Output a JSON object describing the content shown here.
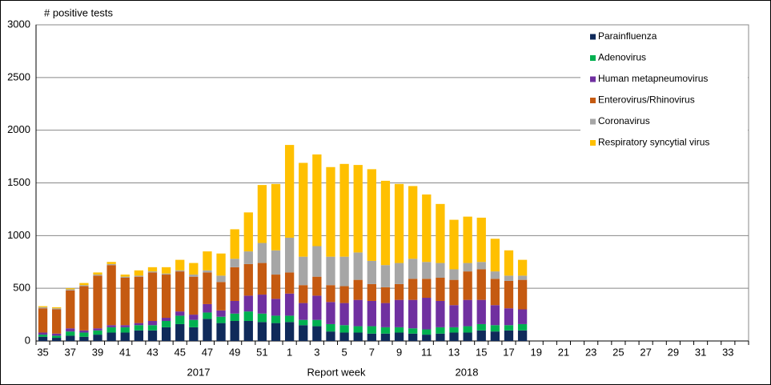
{
  "chart_data": {
    "type": "stacked_bar",
    "ylabel": "# positive tests",
    "xlabel": "Report  week",
    "annotations": [
      "2017",
      "2018"
    ],
    "categories": [
      35,
      null,
      37,
      null,
      39,
      null,
      41,
      null,
      43,
      null,
      45,
      null,
      47,
      null,
      49,
      null,
      51,
      null,
      1,
      null,
      3,
      null,
      5,
      null,
      7,
      null,
      9,
      null,
      11,
      null,
      13,
      null,
      15,
      null,
      17,
      null,
      19,
      null,
      21,
      null,
      23,
      null,
      25,
      null,
      27,
      null,
      29,
      null,
      31,
      null,
      33,
      null
    ],
    "ylim": [
      0,
      3000
    ],
    "yticks": [
      0,
      500,
      1000,
      1500,
      2000,
      2500,
      3000
    ],
    "grid": true,
    "legend": "top-right",
    "series": [
      {
        "name": "Parainfluenza",
        "color": "#0f2a5a",
        "values": [
          40,
          30,
          50,
          40,
          60,
          80,
          80,
          100,
          100,
          130,
          160,
          130,
          210,
          170,
          190,
          190,
          180,
          170,
          180,
          150,
          140,
          90,
          80,
          80,
          70,
          70,
          80,
          70,
          60,
          70,
          80,
          80,
          100,
          90,
          100,
          100,
          null,
          null,
          null,
          null,
          null,
          null,
          null,
          null,
          null,
          null,
          null,
          null,
          null,
          null,
          null,
          null
        ]
      },
      {
        "name": "Adenovirus",
        "color": "#00b050",
        "values": [
          20,
          20,
          40,
          40,
          40,
          50,
          50,
          50,
          50,
          60,
          80,
          70,
          60,
          60,
          70,
          90,
          80,
          70,
          60,
          50,
          60,
          70,
          70,
          60,
          70,
          60,
          50,
          50,
          50,
          60,
          50,
          60,
          60,
          60,
          50,
          60,
          null,
          null,
          null,
          null,
          null,
          null,
          null,
          null,
          null,
          null,
          null,
          null,
          null,
          null,
          null,
          null
        ]
      },
      {
        "name": "Human metapneumovirus",
        "color": "#7030a0",
        "values": [
          20,
          20,
          30,
          20,
          20,
          20,
          20,
          20,
          40,
          30,
          40,
          50,
          80,
          60,
          120,
          150,
          180,
          160,
          210,
          160,
          230,
          210,
          210,
          250,
          240,
          230,
          260,
          270,
          300,
          250,
          210,
          250,
          230,
          190,
          160,
          140,
          null,
          null,
          null,
          null,
          null,
          null,
          null,
          null,
          null,
          null,
          null,
          null,
          null,
          null,
          null,
          null
        ]
      },
      {
        "name": "Enterovirus/Rhinovirus",
        "color": "#c55a11",
        "values": [
          230,
          230,
          360,
          420,
          500,
          570,
          450,
          440,
          460,
          410,
          380,
          360,
          300,
          270,
          320,
          300,
          300,
          230,
          200,
          170,
          180,
          160,
          160,
          190,
          160,
          150,
          150,
          200,
          180,
          220,
          240,
          270,
          290,
          250,
          260,
          280,
          null,
          null,
          null,
          null,
          null,
          null,
          null,
          null,
          null,
          null,
          null,
          null,
          null,
          null,
          null,
          null
        ]
      },
      {
        "name": "Coronavirus",
        "color": "#a6a6a6",
        "values": [
          10,
          10,
          10,
          10,
          10,
          10,
          10,
          10,
          10,
          10,
          10,
          20,
          20,
          60,
          80,
          120,
          190,
          230,
          330,
          270,
          290,
          270,
          280,
          260,
          220,
          210,
          200,
          190,
          160,
          140,
          100,
          80,
          70,
          70,
          50,
          40,
          null,
          null,
          null,
          null,
          null,
          null,
          null,
          null,
          null,
          null,
          null,
          null,
          null,
          null,
          null,
          null
        ]
      },
      {
        "name": "Respiratory syncytial virus",
        "color": "#ffc000",
        "values": [
          10,
          10,
          10,
          20,
          20,
          20,
          20,
          50,
          40,
          60,
          100,
          110,
          180,
          210,
          280,
          370,
          550,
          630,
          880,
          890,
          870,
          850,
          880,
          830,
          870,
          800,
          750,
          690,
          640,
          560,
          470,
          440,
          420,
          310,
          240,
          150,
          null,
          null,
          null,
          null,
          null,
          null,
          null,
          null,
          null,
          null,
          null,
          null,
          null,
          null,
          null,
          null
        ]
      }
    ]
  }
}
